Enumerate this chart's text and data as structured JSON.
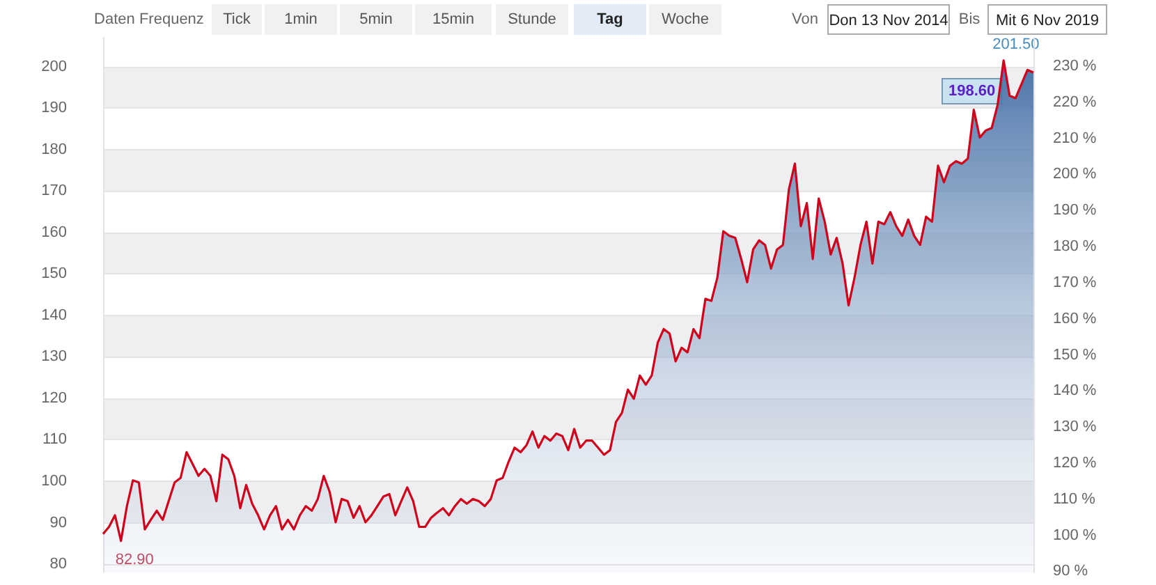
{
  "chart_data": {
    "type": "area",
    "categories": [
      null,
      null,
      null,
      null,
      null,
      null,
      null,
      null,
      null,
      null,
      null,
      null,
      null,
      null,
      null,
      null,
      null,
      null,
      null,
      null,
      null,
      null,
      null,
      null,
      null,
      null,
      null,
      null,
      null,
      null,
      null,
      null,
      null,
      null,
      null,
      null,
      null,
      null,
      null,
      null,
      null,
      null,
      null,
      null,
      null,
      null,
      null,
      null,
      null,
      null,
      null,
      null,
      null,
      null,
      null,
      null,
      null,
      null,
      null,
      null,
      null,
      null,
      null,
      null,
      null,
      null,
      null,
      null,
      null,
      null,
      null,
      null,
      null,
      null,
      null,
      null,
      null,
      null,
      null,
      null,
      null,
      null,
      null,
      null,
      null,
      null,
      null,
      null,
      null,
      null,
      null,
      null,
      null,
      null,
      null,
      null,
      null,
      null,
      null,
      null,
      null,
      null,
      null,
      null,
      null,
      null,
      null,
      null,
      null,
      null,
      null,
      null,
      null,
      null,
      null,
      null,
      null,
      null,
      null,
      null,
      null,
      null,
      null,
      null,
      null,
      null,
      null,
      null,
      null,
      null,
      null,
      null,
      null,
      null,
      null,
      null,
      null,
      null,
      null,
      null,
      null,
      null,
      null,
      null,
      null,
      null,
      null,
      null,
      null,
      null,
      null,
      null,
      null,
      null,
      null,
      null,
      null
    ],
    "series": [
      {
        "color": "#d0021b",
        "values": [
          87.3,
          89,
          91.8,
          85.6,
          94,
          100.2,
          99.7,
          88.4,
          90.7,
          92.9,
          90.7,
          95.2,
          99.7,
          100.8,
          107,
          104.2,
          101.3,
          103,
          101.3,
          95.2,
          106.4,
          105.3,
          101.3,
          93.5,
          99.1,
          94.6,
          91.8,
          88.4,
          91.8,
          94,
          88.4,
          90.7,
          88.4,
          91.8,
          94,
          92.9,
          95.7,
          101.3,
          97.4,
          90.1,
          95.7,
          95.2,
          91.2,
          94,
          90.1,
          91.8,
          94,
          96.3,
          96.9,
          91.8,
          95.2,
          98.5,
          95.2,
          89,
          89,
          91.2,
          92.4,
          93.5,
          91.8,
          94,
          95.7,
          94.6,
          95.7,
          95.2,
          94,
          95.7,
          100.2,
          100.8,
          104.7,
          108.1,
          107,
          108.7,
          112,
          108.1,
          110.9,
          109.8,
          111.5,
          110.9,
          107.5,
          112.6,
          108.1,
          109.8,
          109.8,
          108.1,
          106.4,
          107.5,
          114.3,
          116.5,
          122.1,
          119.9,
          125.5,
          123.3,
          125.5,
          133.4,
          136.7,
          135.6,
          128.9,
          132.2,
          131.1,
          136.7,
          134.5,
          144,
          143.5,
          149.1,
          160.3,
          159.2,
          158.7,
          153.6,
          148,
          155.9,
          158.1,
          157,
          151.3,
          155.9,
          157,
          170.4,
          176.6,
          161.5,
          167.1,
          153.6,
          168.2,
          162.6,
          154.7,
          158.7,
          152.5,
          142.4,
          149.1,
          157,
          162.6,
          152.5,
          162.6,
          162,
          164.9,
          161.5,
          159.2,
          163.1,
          159.2,
          157,
          163.8,
          162.6,
          176.1,
          172.1,
          176.1,
          177.2,
          176.6,
          177.8,
          189.6,
          182.9,
          184.6,
          185.2,
          190.8,
          201.5,
          193,
          192.4,
          195.8,
          199.2,
          198.6
        ]
      }
    ],
    "ylim": [
      78,
      207
    ],
    "yticks": [
      80,
      90,
      100,
      110,
      120,
      130,
      140,
      150,
      160,
      170,
      180,
      190,
      200
    ],
    "y2lim": [
      89.7,
      237.9
    ],
    "y2ticks": [
      {
        "value": 90,
        "label": "90 %"
      },
      {
        "value": 100,
        "label": "100 %"
      },
      {
        "value": 110,
        "label": "110 %"
      },
      {
        "value": 120,
        "label": "120 %"
      },
      {
        "value": 130,
        "label": "130 %"
      },
      {
        "value": 140,
        "label": "140 %"
      },
      {
        "value": 150,
        "label": "150 %"
      },
      {
        "value": 160,
        "label": "160 %"
      },
      {
        "value": 170,
        "label": "170 %"
      },
      {
        "value": 180,
        "label": "180 %"
      },
      {
        "value": 190,
        "label": "190 %"
      },
      {
        "value": 200,
        "label": "200 %"
      },
      {
        "value": 210,
        "label": "210 %"
      },
      {
        "value": 220,
        "label": "220 %"
      },
      {
        "value": 230,
        "label": "230 %"
      }
    ],
    "grid": true,
    "annotations": [
      "Daten Frequenz",
      "Tick",
      "1min",
      "5min",
      "15min",
      "Stunde",
      "Tag",
      "Woche",
      "Von",
      "Don 13 Nov 2014",
      "Bis",
      "Mit 6 Nov 2019",
      "82.90",
      "201.50",
      "198.60"
    ]
  }
}
